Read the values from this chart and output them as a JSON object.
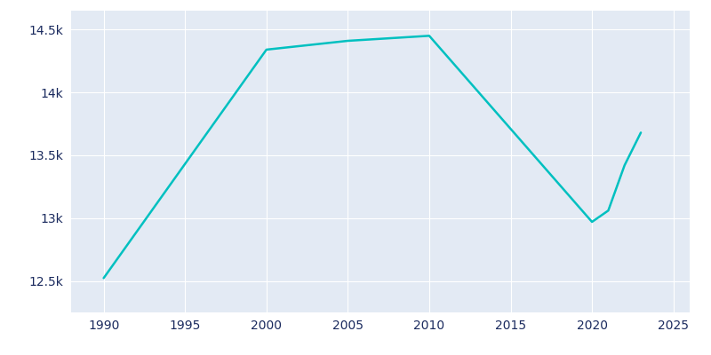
{
  "years": [
    1990,
    2000,
    2005,
    2010,
    2020,
    2021,
    2022,
    2023
  ],
  "population": [
    12523,
    14340,
    14410,
    14450,
    12970,
    13060,
    13420,
    13680
  ],
  "line_color": "#00C0C0",
  "fig_bg_color": "#ffffff",
  "plot_bg_color": "#E3EAF4",
  "tick_color": "#1a2a5e",
  "grid_color": "#ffffff",
  "xlim": [
    1988,
    2026
  ],
  "ylim": [
    12250,
    14650
  ],
  "xticks": [
    1990,
    1995,
    2000,
    2005,
    2010,
    2015,
    2020,
    2025
  ],
  "yticks": [
    12500,
    13000,
    13500,
    14000,
    14500
  ],
  "ytick_labels": [
    "12.5k",
    "13k",
    "13.5k",
    "14k",
    "14.5k"
  ]
}
